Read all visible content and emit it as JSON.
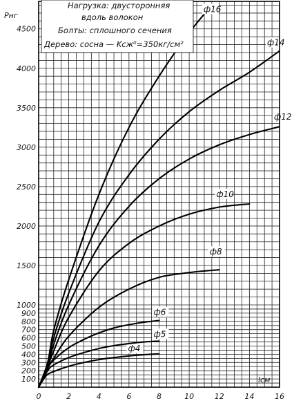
{
  "chart_data": {
    "type": "line",
    "title": "",
    "annotations": [
      "Нагрузка: двусторонняя",
      "вдоль волокон",
      "Болты: сплошного сечения",
      "Дерево: сосна — Kсж⁰=350кг/см²"
    ],
    "xlabel": "lсм",
    "ylabel": "Рнг",
    "xlim": [
      0,
      16
    ],
    "ylim": [
      0,
      4800
    ],
    "x_ticks": [
      "0",
      "2",
      "4",
      "6",
      "8",
      "10",
      "12",
      "14",
      "16"
    ],
    "y_ticks": [
      "100",
      "200",
      "300",
      "400",
      "500",
      "600",
      "700",
      "800",
      "900",
      "1000",
      "1500",
      "2000",
      "2500",
      "3000",
      "3500",
      "4000",
      "4500"
    ],
    "y_axis_note": "axis is nonlinear: 0–1000 expanded, 1000–4800 linear",
    "grid": true,
    "series": [
      {
        "name": "ф4",
        "x": [
          0,
          0.5,
          1,
          2,
          3,
          4,
          5,
          6,
          7,
          8
        ],
        "y": [
          0,
          140,
          190,
          255,
          300,
          335,
          360,
          380,
          395,
          405
        ]
      },
      {
        "name": "ф5",
        "x": [
          0,
          0.6,
          1,
          2,
          3,
          4,
          5,
          6,
          7,
          8
        ],
        "y": [
          0,
          200,
          270,
          360,
          420,
          470,
          505,
          530,
          550,
          560
        ]
      },
      {
        "name": "ф6",
        "x": [
          0,
          0.6,
          1,
          2,
          3,
          4,
          5,
          6,
          7,
          8
        ],
        "y": [
          0,
          230,
          330,
          480,
          580,
          660,
          720,
          760,
          790,
          810
        ]
      },
      {
        "name": "ф8",
        "x": [
          0,
          0.6,
          1,
          2,
          4,
          6,
          8,
          10,
          11,
          12
        ],
        "y": [
          0,
          240,
          350,
          620,
          970,
          1200,
          1350,
          1410,
          1430,
          1445
        ]
      },
      {
        "name": "ф10",
        "x": [
          0,
          0.6,
          1,
          2,
          4,
          6,
          8,
          10,
          12,
          14
        ],
        "y": [
          0,
          250,
          440,
          850,
          1430,
          1780,
          2000,
          2150,
          2240,
          2280
        ]
      },
      {
        "name": "ф12",
        "x": [
          0,
          0.6,
          1,
          2,
          4,
          6,
          8,
          10,
          12,
          14,
          16
        ],
        "y": [
          0,
          260,
          520,
          1000,
          1750,
          2250,
          2600,
          2850,
          3030,
          3160,
          3260
        ]
      },
      {
        "name": "ф14",
        "x": [
          0,
          0.6,
          1,
          2,
          4,
          6,
          8,
          10,
          12,
          14,
          16
        ],
        "y": [
          0,
          280,
          600,
          1150,
          2050,
          2650,
          3100,
          3450,
          3720,
          3950,
          4220
        ]
      },
      {
        "name": "ф16",
        "x": [
          0,
          0.6,
          1,
          2,
          4,
          6,
          8,
          10,
          11.5
        ],
        "y": [
          0,
          300,
          690,
          1320,
          2400,
          3250,
          3900,
          4450,
          4800
        ]
      }
    ],
    "series_labels": [
      "ф4",
      "ф5",
      "ф6",
      "ф8",
      "ф10",
      "ф12",
      "ф14",
      "ф16"
    ]
  }
}
